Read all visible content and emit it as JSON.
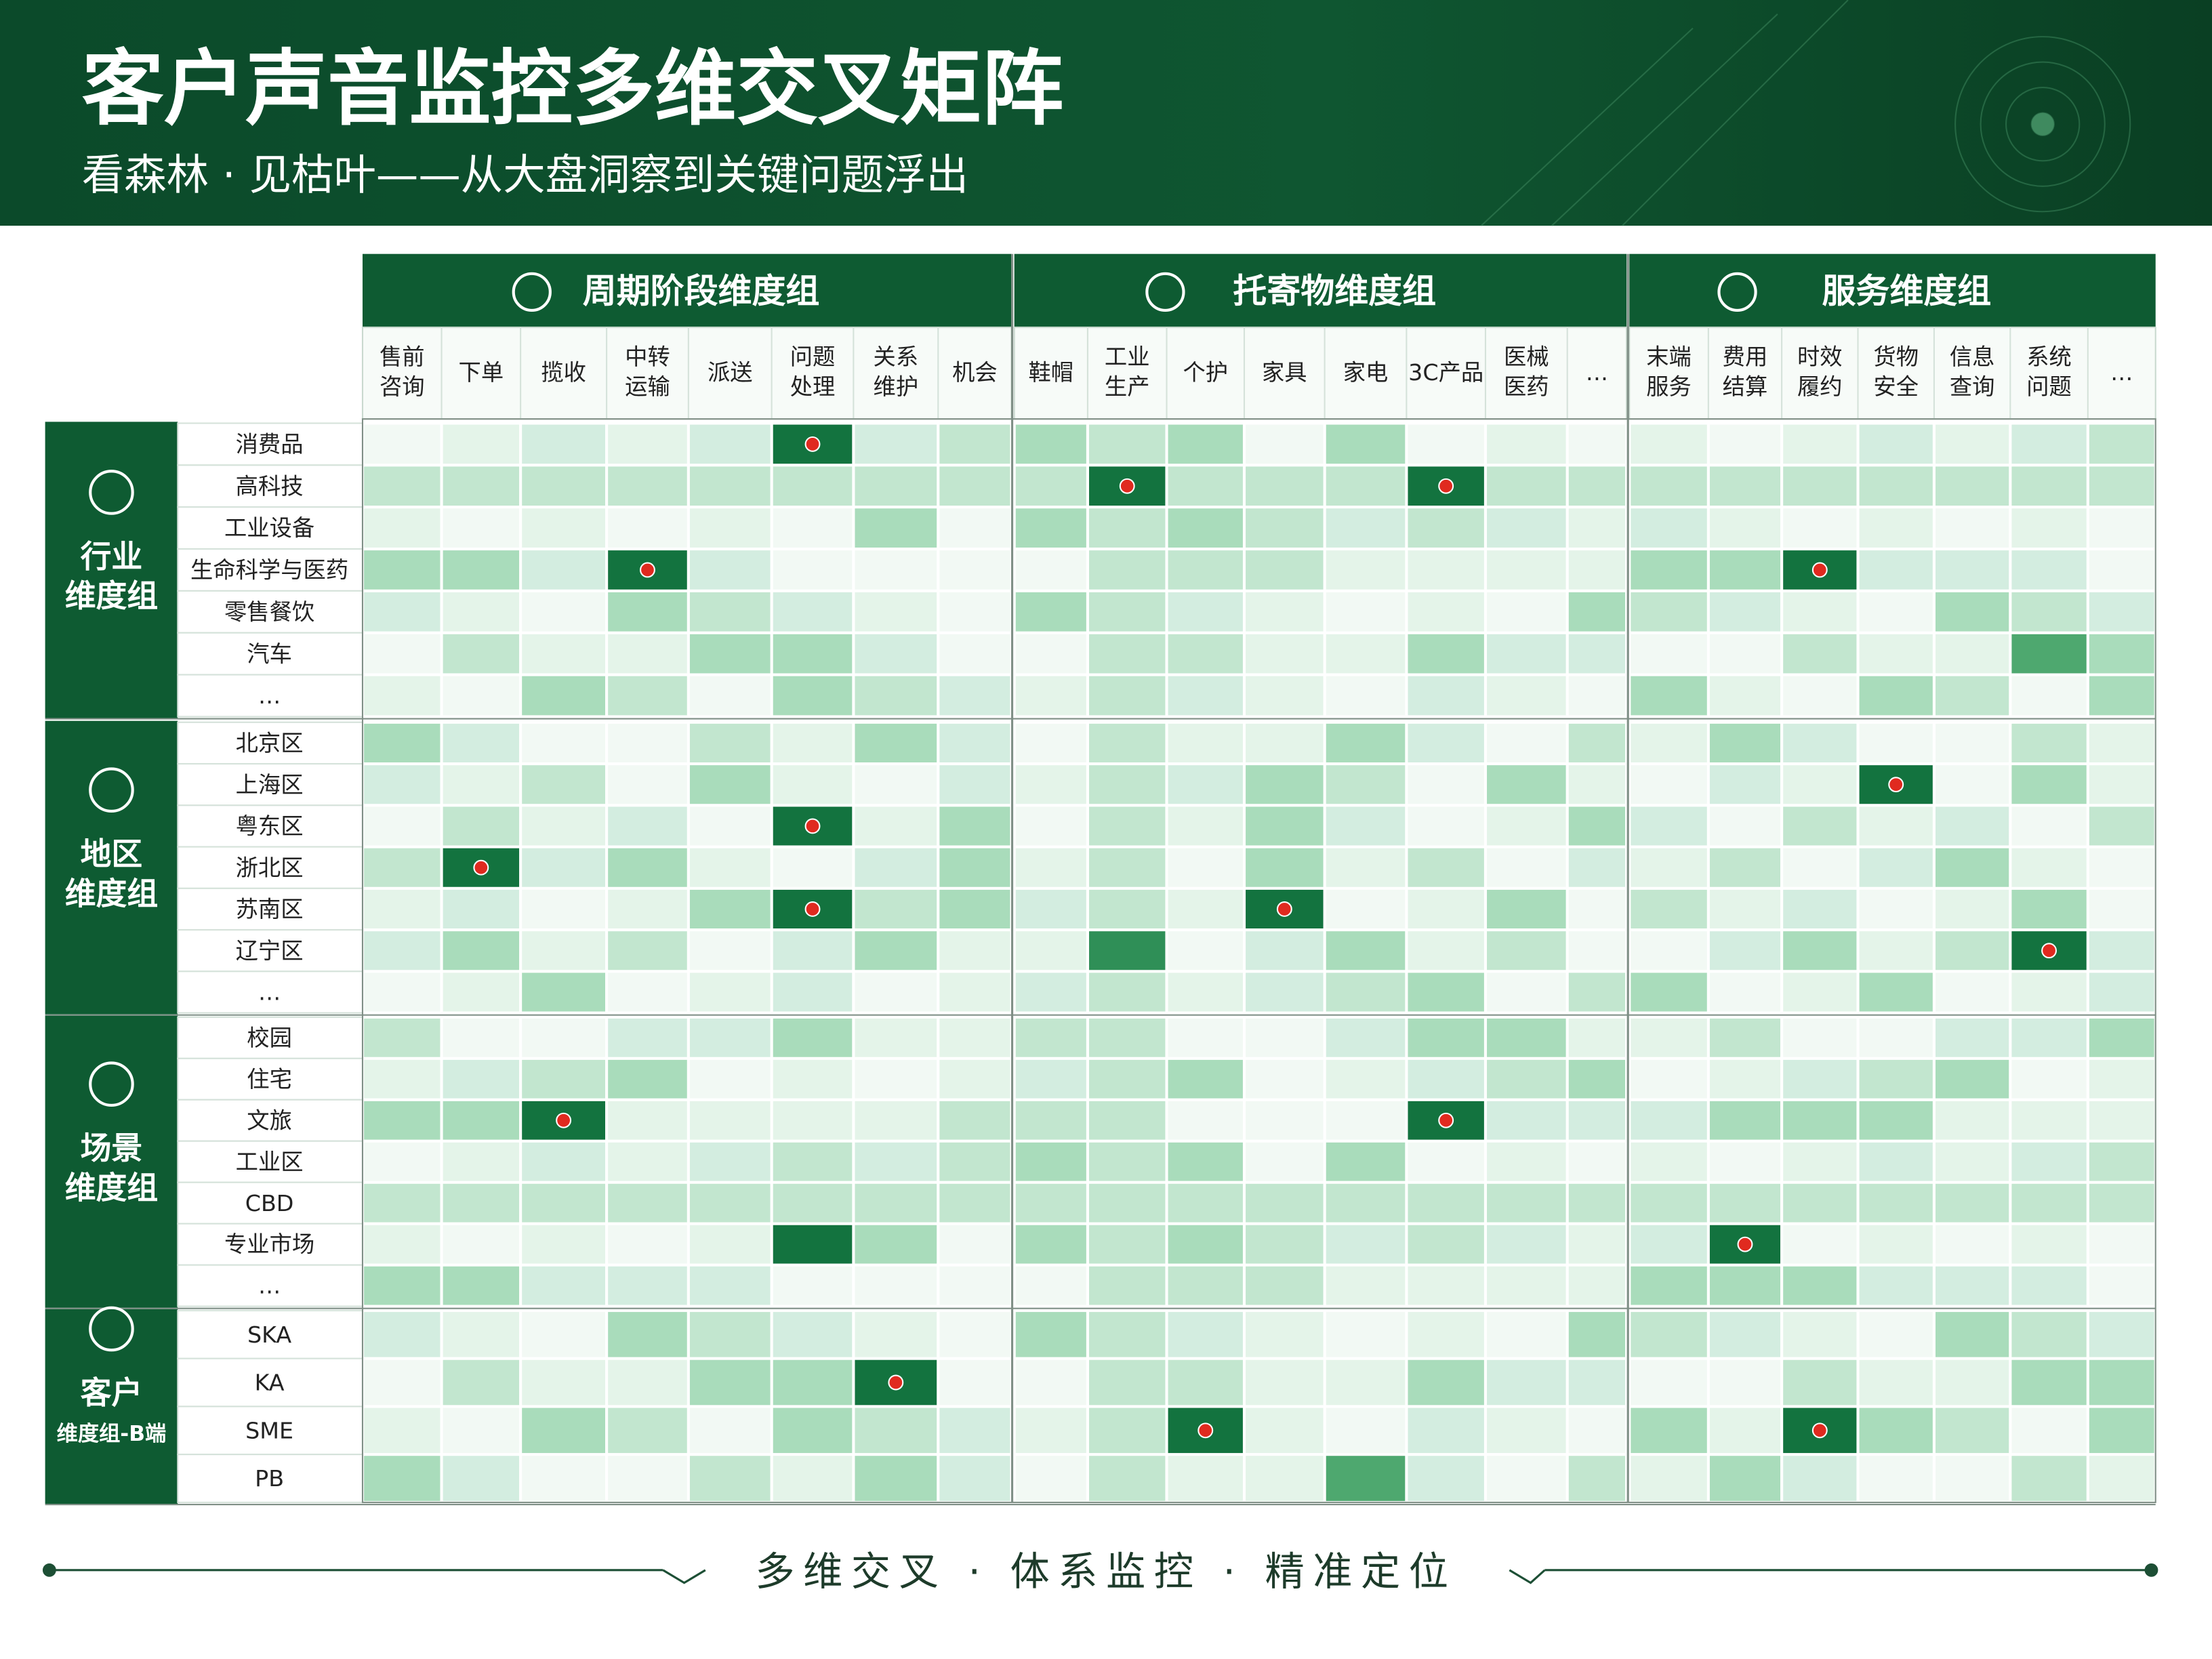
{
  "header": {
    "title": "客户声音监控多维交叉矩阵",
    "subtitle": "看森林 · 见枯叶——从大盘洞察到关键问题浮出"
  },
  "column_groups": [
    {
      "name": "周期阶段维度组",
      "columns": [
        [
          "售前",
          "咨询"
        ],
        [
          "下单"
        ],
        [
          "揽收"
        ],
        [
          "中转",
          "运输"
        ],
        [
          "派送"
        ],
        [
          "问题",
          "处理"
        ],
        [
          "关系",
          "维护"
        ],
        [
          "机会"
        ]
      ]
    },
    {
      "name": "托寄物维度组",
      "columns": [
        [
          "鞋帽"
        ],
        [
          "工业",
          "生产"
        ],
        [
          "个护"
        ],
        [
          "家具"
        ],
        [
          "家电"
        ],
        [
          "3C产品"
        ],
        [
          "医械",
          "医药"
        ],
        [
          "…"
        ]
      ]
    },
    {
      "name": "服务维度组",
      "columns": [
        [
          "末端",
          "服务"
        ],
        [
          "费用",
          "结算"
        ],
        [
          "时效",
          "履约"
        ],
        [
          "货物",
          "安全"
        ],
        [
          "信息",
          "查询"
        ],
        [
          "系统",
          "问题"
        ],
        [
          "…"
        ]
      ]
    }
  ],
  "row_groups": [
    {
      "name": [
        "行业",
        "维度组"
      ],
      "rows": [
        "消费品",
        "高科技",
        "工业设备",
        "生命科学与医药",
        "零售餐饮",
        "汽车",
        "…"
      ]
    },
    {
      "name": [
        "地区",
        "维度组"
      ],
      "rows": [
        "北京区",
        "上海区",
        "粤东区",
        "浙北区",
        "苏南区",
        "辽宁区",
        "…"
      ]
    },
    {
      "name": [
        "场景",
        "维度组"
      ],
      "rows": [
        "校园",
        "住宅",
        "文旅",
        "工业区",
        "CBD",
        "专业市场",
        "…"
      ]
    },
    {
      "name": [
        "客户",
        "维度组-B端"
      ],
      "rows": [
        "SKA",
        "KA",
        "SME",
        "PB"
      ]
    }
  ],
  "footer": {
    "slogan": "多维交叉 · 体系监控 · 精准定位"
  }
}
